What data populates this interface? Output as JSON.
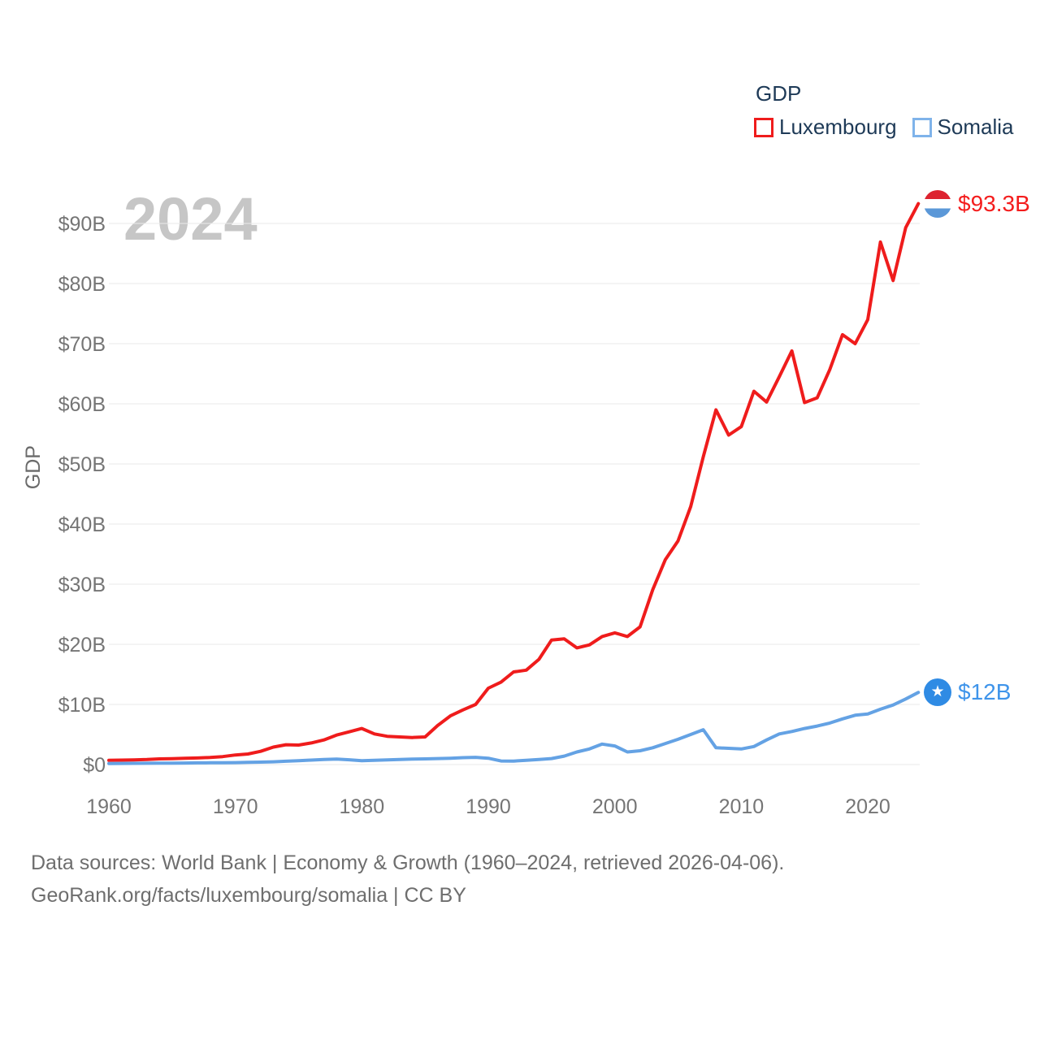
{
  "watermark_year": "2024",
  "y_axis_label": "GDP",
  "legend": {
    "title": "GDP",
    "items": [
      {
        "label": "Luxembourg",
        "color": "#ef1c1c"
      },
      {
        "label": "Somalia",
        "color": "#7fb3ea"
      }
    ]
  },
  "footer": {
    "line1": "Data sources: World Bank | Economy & Growth (1960–2024, retrieved 2026-04-06).",
    "line2": "GeoRank.org/facts/luxembourg/somalia | CC BY"
  },
  "chart_data": {
    "type": "line",
    "title": "GDP",
    "xlabel": "",
    "ylabel": "GDP",
    "grid": "horizontal",
    "legend_position": "top-right",
    "ylim": [
      0,
      95
    ],
    "x_ticks": [
      1960,
      1970,
      1980,
      1990,
      2000,
      2010,
      2020
    ],
    "y_ticks": [
      {
        "v": 0,
        "label": "$0"
      },
      {
        "v": 10,
        "label": "$10B"
      },
      {
        "v": 20,
        "label": "$20B"
      },
      {
        "v": 30,
        "label": "$30B"
      },
      {
        "v": 40,
        "label": "$40B"
      },
      {
        "v": 50,
        "label": "$50B"
      },
      {
        "v": 60,
        "label": "$60B"
      },
      {
        "v": 70,
        "label": "$70B"
      },
      {
        "v": 80,
        "label": "$80B"
      },
      {
        "v": 90,
        "label": "$90B"
      }
    ],
    "x": [
      1960,
      1961,
      1962,
      1963,
      1964,
      1965,
      1966,
      1967,
      1968,
      1969,
      1970,
      1971,
      1972,
      1973,
      1974,
      1975,
      1976,
      1977,
      1978,
      1979,
      1980,
      1981,
      1982,
      1983,
      1984,
      1985,
      1986,
      1987,
      1988,
      1989,
      1990,
      1991,
      1992,
      1993,
      1994,
      1995,
      1996,
      1997,
      1998,
      1999,
      2000,
      2001,
      2002,
      2003,
      2004,
      2005,
      2006,
      2007,
      2008,
      2009,
      2010,
      2011,
      2012,
      2013,
      2014,
      2015,
      2016,
      2017,
      2018,
      2019,
      2020,
      2021,
      2022,
      2023,
      2024
    ],
    "series": [
      {
        "name": "Luxembourg",
        "unit": "billion USD",
        "color": "#ef1c1c",
        "label_color": "#f41d1d",
        "end_label": "$93.3B",
        "values": [
          0.7,
          0.75,
          0.79,
          0.84,
          0.94,
          0.99,
          1.04,
          1.09,
          1.18,
          1.32,
          1.6,
          1.75,
          2.2,
          2.9,
          3.3,
          3.25,
          3.6,
          4.1,
          4.9,
          5.45,
          6.0,
          5.1,
          4.7,
          4.6,
          4.5,
          4.6,
          6.5,
          8.1,
          9.1,
          10.0,
          12.7,
          13.7,
          15.4,
          15.7,
          17.5,
          20.7,
          20.9,
          19.4,
          19.9,
          21.3,
          21.9,
          21.3,
          22.9,
          29.1,
          34.1,
          37.2,
          42.9,
          51.2,
          59.0,
          54.8,
          56.2,
          62.1,
          60.3,
          64.5,
          68.8,
          60.2,
          61.0,
          65.7,
          71.5,
          70.0,
          74.0,
          86.9,
          80.5,
          89.3,
          93.3
        ]
      },
      {
        "name": "Somalia",
        "unit": "billion USD",
        "color": "#64a2e4",
        "label_color": "#3f94ea",
        "end_label": "$12B",
        "values": [
          0.18,
          0.19,
          0.2,
          0.21,
          0.23,
          0.24,
          0.26,
          0.28,
          0.3,
          0.31,
          0.33,
          0.36,
          0.4,
          0.46,
          0.55,
          0.65,
          0.75,
          0.85,
          0.92,
          0.8,
          0.63,
          0.7,
          0.78,
          0.85,
          0.9,
          0.95,
          1.0,
          1.05,
          1.15,
          1.2,
          1.05,
          0.6,
          0.58,
          0.7,
          0.85,
          1.0,
          1.4,
          2.1,
          2.6,
          3.4,
          3.1,
          2.1,
          2.3,
          2.8,
          3.5,
          4.2,
          5.0,
          5.8,
          2.8,
          2.7,
          2.6,
          3.0,
          4.1,
          5.1,
          5.5,
          6.0,
          6.4,
          6.9,
          7.6,
          8.2,
          8.4,
          9.2,
          9.9,
          10.9,
          12.0
        ]
      }
    ]
  }
}
